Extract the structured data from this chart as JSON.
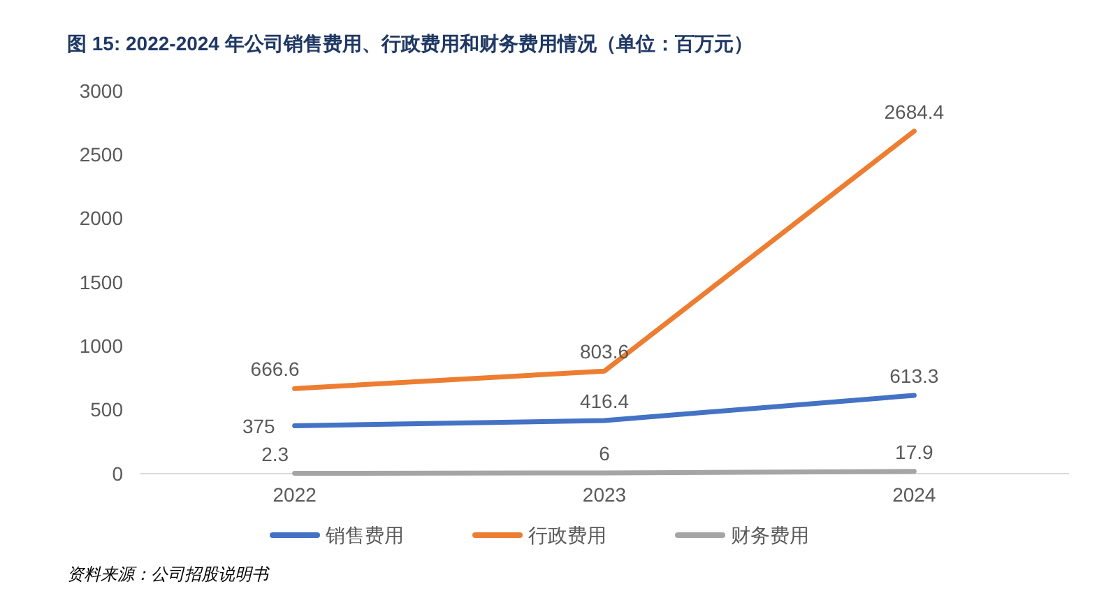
{
  "chart_data": {
    "type": "line",
    "title": "图 15:  2022-2024 年公司销售费用、行政费用和财务费用情况（单位：百万元）",
    "categories": [
      "2022",
      "2023",
      "2024"
    ],
    "series": [
      {
        "name": "销售费用",
        "color": "#4472c4",
        "values": [
          375,
          416.4,
          613.3
        ]
      },
      {
        "name": "行政费用",
        "color": "#ed7d31",
        "values": [
          666.6,
          803.6,
          2684.4
        ]
      },
      {
        "name": "财务费用",
        "color": "#a5a5a5",
        "values": [
          2.3,
          6,
          17.9
        ]
      }
    ],
    "ylim": [
      0,
      3000
    ],
    "yticks": [
      0,
      500,
      1000,
      1500,
      2000,
      2500,
      3000
    ],
    "grid": false,
    "legend": "bottom",
    "data_labels": true,
    "marker": "none",
    "line_style": "solid",
    "annotations": [
      "资料来源：公司招股说明书"
    ]
  }
}
